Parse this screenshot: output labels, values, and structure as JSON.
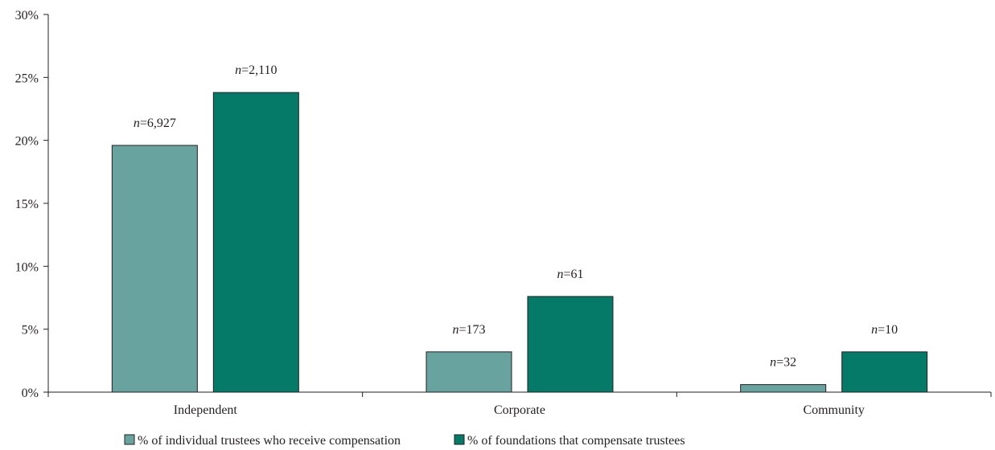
{
  "chart_data": {
    "type": "bar",
    "categories": [
      "Independent",
      "Corporate",
      "Community"
    ],
    "series": [
      {
        "name": "% of individual trustees who receive compensation",
        "values": [
          19.6,
          3.2,
          0.6
        ],
        "n_labels": [
          "6,927",
          "173",
          "32"
        ],
        "color": "#68a3a0"
      },
      {
        "name": "% of foundations that compensate trustees",
        "values": [
          23.8,
          7.6,
          3.2
        ],
        "n_labels": [
          "2,110",
          "61",
          "10"
        ],
        "color": "#057a69"
      }
    ],
    "n_prefix": "n",
    "n_sep": "=",
    "yticks": [
      "0%",
      "5%",
      "10%",
      "15%",
      "20%",
      "25%",
      "30%"
    ],
    "ylim": [
      0,
      30
    ],
    "legend_position": "bottom",
    "grid": false
  }
}
